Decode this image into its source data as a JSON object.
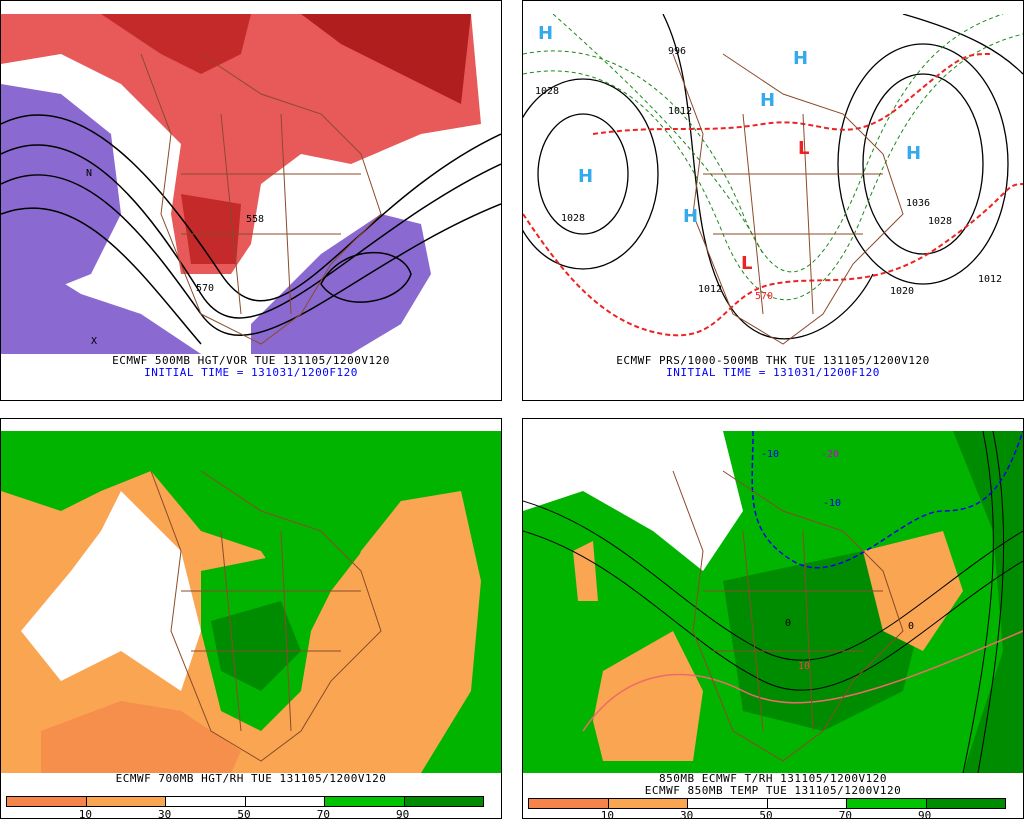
{
  "panels": {
    "top_left": {
      "caption": "ECMWF 500MB HGT/VOR TUE 131105/1200V120",
      "subcaption": "INITIAL TIME = 131031/1200F120",
      "contour_labels": [
        "558",
        "570",
        "N",
        "X"
      ]
    },
    "top_right": {
      "caption": "ECMWF PRS/1000-500MB THK TUE 131105/1200V120",
      "subcaption": "INITIAL TIME = 131031/1200F120",
      "contour_labels": [
        "1028",
        "1028",
        "1012",
        "1012",
        "1036",
        "1028",
        "1020",
        "1012",
        "996",
        "570"
      ],
      "highs": [
        "H",
        "H",
        "H",
        "H",
        "H",
        "H"
      ],
      "lows": [
        "L",
        "L"
      ]
    },
    "bottom_left": {
      "caption": "ECMWF 700MB HGT/RH TUE 131105/1200V120",
      "legend": {
        "ticks": [
          "10",
          "30",
          "50",
          "70",
          "90"
        ],
        "colors": [
          "#f5844a",
          "#f9a552",
          "#ffffff",
          "#ffffff",
          "#00c400",
          "#008c00"
        ]
      }
    },
    "bottom_right": {
      "caption": "850MB ECMWF T/RH 131105/1200V120",
      "caption2": "ECMWF 850MB TEMP TUE 131105/1200V120",
      "contour_labels": [
        "-10",
        "-20",
        "-10",
        "0",
        "10",
        "0"
      ],
      "legend": {
        "ticks": [
          "10",
          "30",
          "50",
          "70",
          "90"
        ],
        "colors": [
          "#f5844a",
          "#f9a552",
          "#ffffff",
          "#ffffff",
          "#00c400",
          "#008c00"
        ]
      }
    }
  },
  "colors": {
    "vorticity": "#e85a5a",
    "neg_vorticity": "#8a6ad0",
    "high": "#33aaee",
    "low": "#ee2222",
    "thickness": "#ee2222",
    "border": "#8b4a2a",
    "dry": "#f9a552",
    "moist": "#00b400"
  }
}
